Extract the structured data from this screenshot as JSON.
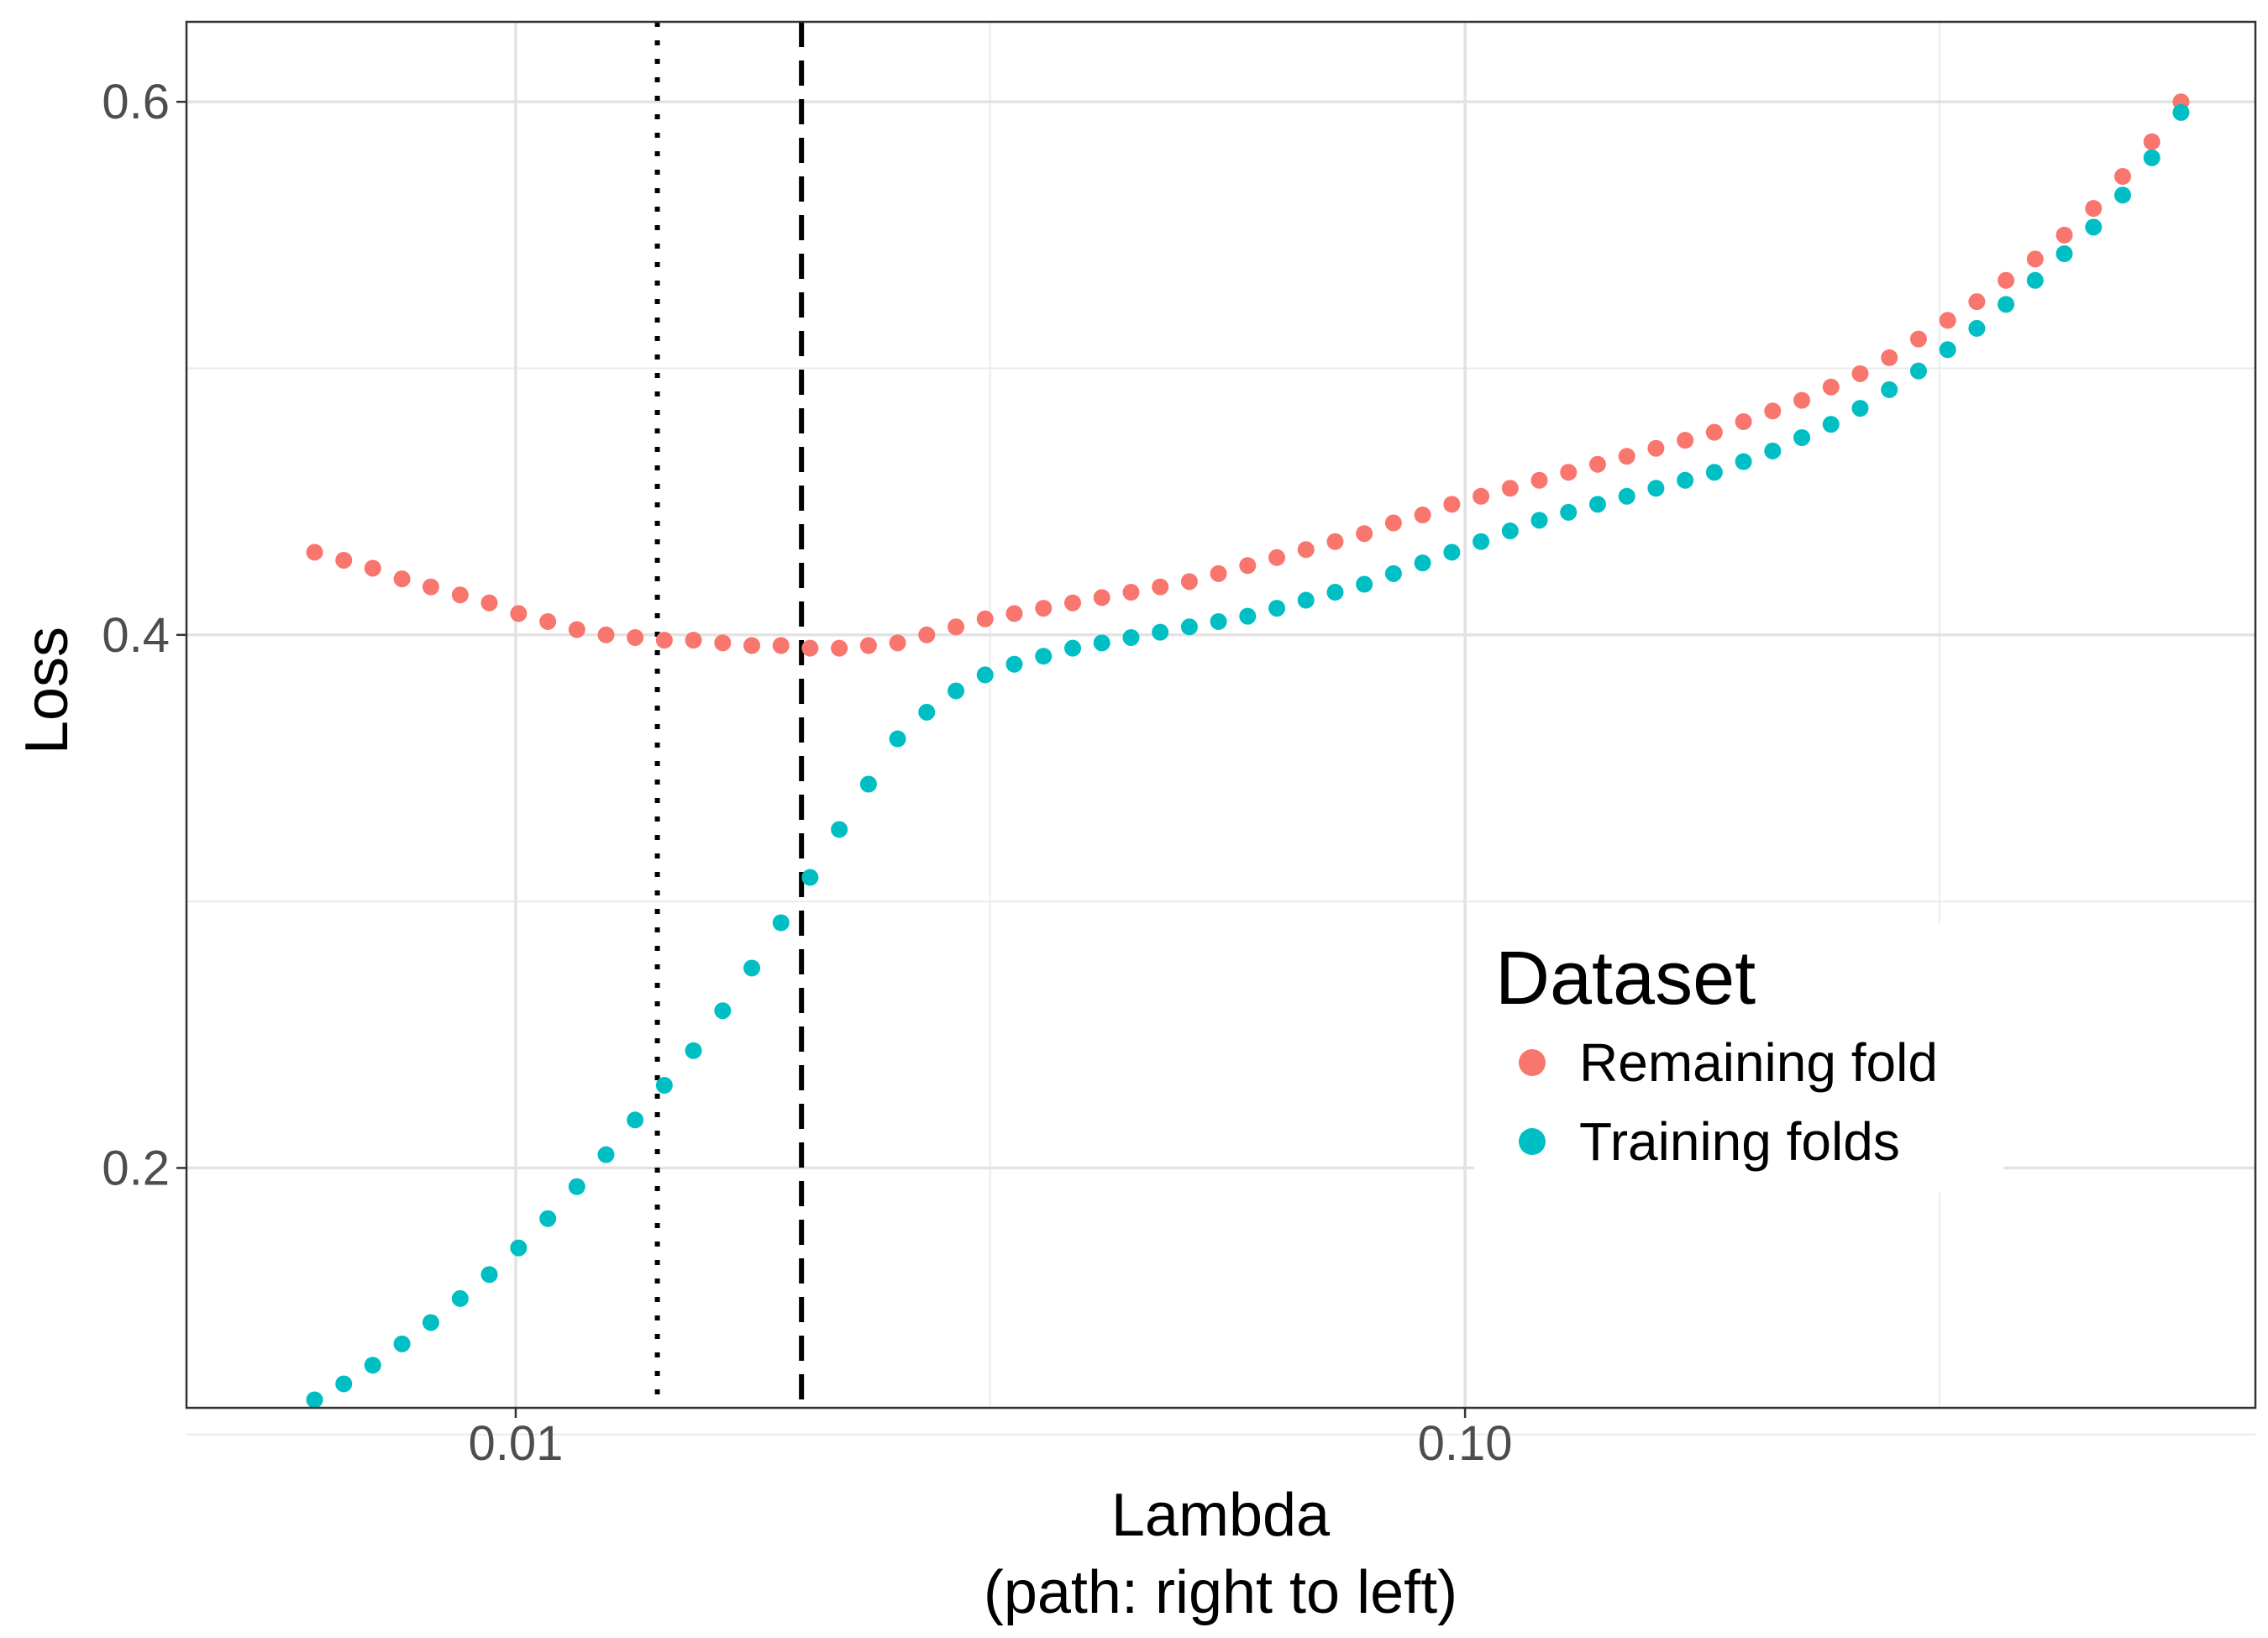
{
  "chart_data": {
    "type": "scatter",
    "xlabel": "Lambda",
    "xlabel_line2": "(path: right to left)",
    "ylabel": "Loss",
    "x_scale": "log10",
    "xlim": [
      0.0045,
      0.68
    ],
    "ylim": [
      0.11,
      0.63
    ],
    "x_ticks": [
      {
        "value": 0.01,
        "label": "0.01"
      },
      {
        "value": 0.1,
        "label": "0.10"
      }
    ],
    "x_minor_ticks": [
      0.0316,
      0.316
    ],
    "y_ticks": [
      {
        "value": 0.2,
        "label": "0.2"
      },
      {
        "value": 0.4,
        "label": "0.4"
      },
      {
        "value": 0.6,
        "label": "0.6"
      }
    ],
    "y_minor_ticks": [
      0.1,
      0.3,
      0.5
    ],
    "grid": true,
    "vlines": [
      {
        "x": 0.0141,
        "style": "dotted"
      },
      {
        "x": 0.02,
        "style": "dashed"
      }
    ],
    "legend": {
      "title": "Dataset",
      "position": "bottom-right"
    },
    "x": [
      0.00614,
      0.00659,
      0.00707,
      0.00759,
      0.00814,
      0.00874,
      0.00938,
      0.01007,
      0.01081,
      0.0116,
      0.01245,
      0.01336,
      0.01434,
      0.01539,
      0.01652,
      0.01773,
      0.01903,
      0.02042,
      0.02192,
      0.02353,
      0.02525,
      0.0271,
      0.02909,
      0.03122,
      0.03351,
      0.03597,
      0.03861,
      0.04144,
      0.04448,
      0.04774,
      0.05124,
      0.05499,
      0.05902,
      0.06335,
      0.06799,
      0.07297,
      0.07832,
      0.08406,
      0.09022,
      0.09684,
      0.10394,
      0.11156,
      0.11974,
      0.12851,
      0.13793,
      0.14804,
      0.1589,
      0.17055,
      0.18305,
      0.19647,
      0.21087,
      0.22633,
      0.24292,
      0.26073,
      0.27984,
      0.30036,
      0.32238,
      0.34601,
      0.37137,
      0.3986,
      0.42782,
      0.45918,
      0.49284,
      0.52897,
      0.56774
    ],
    "series": [
      {
        "name": "Remaining fold",
        "color": "#F8766D",
        "values": [
          0.431,
          0.428,
          0.425,
          0.421,
          0.418,
          0.415,
          0.412,
          0.408,
          0.405,
          0.402,
          0.4,
          0.399,
          0.398,
          0.398,
          0.397,
          0.396,
          0.396,
          0.395,
          0.395,
          0.396,
          0.397,
          0.4,
          0.403,
          0.406,
          0.408,
          0.41,
          0.412,
          0.414,
          0.416,
          0.418,
          0.42,
          0.423,
          0.426,
          0.429,
          0.432,
          0.435,
          0.438,
          0.442,
          0.445,
          0.449,
          0.452,
          0.455,
          0.458,
          0.461,
          0.464,
          0.467,
          0.47,
          0.473,
          0.476,
          0.48,
          0.484,
          0.488,
          0.493,
          0.498,
          0.504,
          0.511,
          0.518,
          0.525,
          0.533,
          0.541,
          0.55,
          0.56,
          0.572,
          0.585,
          0.6
        ]
      },
      {
        "name": "Training folds",
        "color": "#00BFC4",
        "values": [
          0.113,
          0.119,
          0.126,
          0.134,
          0.142,
          0.151,
          0.16,
          0.17,
          0.181,
          0.193,
          0.205,
          0.218,
          0.231,
          0.244,
          0.259,
          0.275,
          0.292,
          0.309,
          0.327,
          0.344,
          0.361,
          0.371,
          0.379,
          0.385,
          0.389,
          0.392,
          0.395,
          0.397,
          0.399,
          0.401,
          0.403,
          0.405,
          0.407,
          0.41,
          0.413,
          0.416,
          0.419,
          0.423,
          0.427,
          0.431,
          0.435,
          0.439,
          0.443,
          0.446,
          0.449,
          0.452,
          0.455,
          0.458,
          0.461,
          0.465,
          0.469,
          0.474,
          0.479,
          0.485,
          0.492,
          0.499,
          0.507,
          0.515,
          0.524,
          0.533,
          0.543,
          0.553,
          0.565,
          0.579,
          0.596
        ]
      }
    ]
  }
}
